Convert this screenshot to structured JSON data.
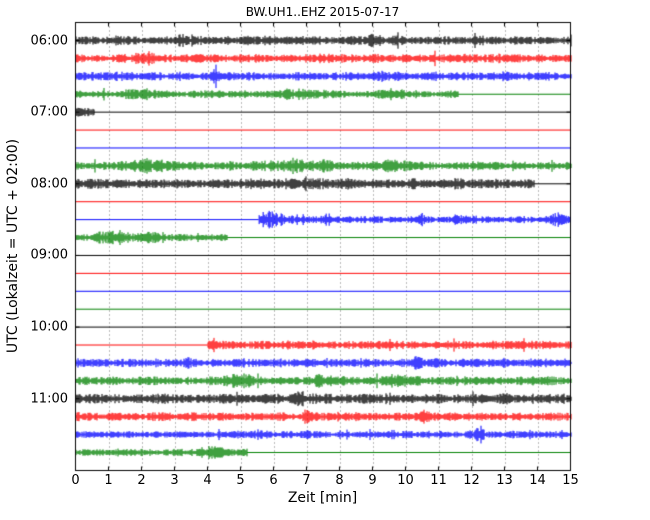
{
  "chart_data": {
    "type": "line",
    "subtype": "helicorder-dayplot",
    "title": "BW.UH1..EHZ 2015-07-17",
    "xlabel": "Zeit  [min]",
    "ylabel": "UTC (Lokalzeit = UTC + 02:00)",
    "xlim": [
      0,
      15
    ],
    "minutes_per_row": 15,
    "num_traces": 24,
    "grid": "dotted vertical line at every minute",
    "legend": "none",
    "xtick_labels": [
      "0",
      "1",
      "2",
      "3",
      "4",
      "5",
      "6",
      "7",
      "8",
      "9",
      "10",
      "11",
      "12",
      "13",
      "14",
      "15"
    ],
    "ytick_labels": [
      "06:00",
      "07:00",
      "08:00",
      "09:00",
      "10:00",
      "11:00"
    ],
    "ytick_rows": [
      0,
      4,
      8,
      12,
      16,
      20
    ],
    "trace_color_cycle": [
      "black",
      "red",
      "blue",
      "green"
    ],
    "colors": {
      "black": "#000000",
      "red": "#ff0000",
      "blue": "#0000ff",
      "green": "#008000"
    },
    "traces": [
      {
        "time": "06:00",
        "color": "black",
        "segments": [
          {
            "s": 0,
            "e": 15,
            "t": "noise",
            "amp": 6
          }
        ],
        "bursts": [
          {
            "at": 3.2,
            "w": 0.15,
            "a": 0.5
          },
          {
            "at": 9.0,
            "w": 0.2,
            "a": 0.4
          }
        ]
      },
      {
        "time": "06:15",
        "color": "red",
        "segments": [
          {
            "s": 0,
            "e": 15,
            "t": "noise",
            "amp": 6
          }
        ],
        "bursts": [
          {
            "at": 2.2,
            "w": 0.12,
            "a": 0.8
          },
          {
            "at": 7.6,
            "w": 0.15,
            "a": 0.5
          }
        ]
      },
      {
        "time": "06:30",
        "color": "blue",
        "segments": [
          {
            "s": 0,
            "e": 15,
            "t": "noise",
            "amp": 6
          }
        ],
        "bursts": [
          {
            "at": 4.3,
            "w": 0.12,
            "a": 0.9
          },
          {
            "at": 10.9,
            "w": 0.1,
            "a": 0.5
          }
        ]
      },
      {
        "time": "06:45",
        "color": "green",
        "segments": [
          {
            "s": 0,
            "e": 11.6,
            "t": "noise",
            "amp": 5
          },
          {
            "s": 11.6,
            "e": 15,
            "t": "flat"
          }
        ],
        "bursts": [
          {
            "at": 2.0,
            "w": 0.35,
            "a": 0.8
          },
          {
            "at": 6.8,
            "w": 0.55,
            "a": 0.7
          },
          {
            "at": 9.6,
            "w": 0.3,
            "a": 0.6
          }
        ]
      },
      {
        "time": "07:00",
        "color": "black",
        "segments": [
          {
            "s": 0,
            "e": 0.55,
            "t": "noise",
            "amp": 7
          },
          {
            "s": 0.55,
            "e": 15,
            "t": "flat"
          }
        ]
      },
      {
        "time": "07:15",
        "color": "red",
        "segments": [
          {
            "s": 0,
            "e": 15,
            "t": "flat"
          }
        ]
      },
      {
        "time": "07:30",
        "color": "blue",
        "segments": [
          {
            "s": 0,
            "e": 15,
            "t": "flat"
          }
        ]
      },
      {
        "time": "07:45",
        "color": "green",
        "segments": [
          {
            "s": 0,
            "e": 15,
            "t": "noise",
            "amp": 6
          }
        ],
        "bursts": [
          {
            "at": 2.1,
            "w": 0.4,
            "a": 0.9
          },
          {
            "at": 6.9,
            "w": 0.6,
            "a": 0.7
          },
          {
            "at": 9.6,
            "w": 0.4,
            "a": 0.5
          }
        ]
      },
      {
        "time": "08:00",
        "color": "black",
        "segments": [
          {
            "s": 0,
            "e": 13.9,
            "t": "noise",
            "amp": 7
          },
          {
            "s": 13.9,
            "e": 15,
            "t": "flat"
          }
        ],
        "bursts": [
          {
            "at": 6.8,
            "w": 0.25,
            "a": 0.4
          }
        ]
      },
      {
        "time": "08:15",
        "color": "red",
        "segments": [
          {
            "s": 0,
            "e": 15,
            "t": "flat"
          }
        ]
      },
      {
        "time": "08:30",
        "color": "blue",
        "segments": [
          {
            "s": 0,
            "e": 5.55,
            "t": "flat"
          },
          {
            "s": 5.55,
            "e": 15,
            "t": "noise",
            "amp": 5
          }
        ],
        "bursts": [
          {
            "at": 5.9,
            "w": 0.3,
            "a": 1.6
          },
          {
            "at": 7.6,
            "w": 0.1,
            "a": 1.0
          },
          {
            "at": 10.4,
            "w": 0.12,
            "a": 1.2
          },
          {
            "at": 11.6,
            "w": 0.1,
            "a": 0.8
          },
          {
            "at": 14.6,
            "w": 0.12,
            "a": 1.0
          }
        ]
      },
      {
        "time": "08:45",
        "color": "green",
        "segments": [
          {
            "s": 0,
            "e": 4.6,
            "t": "noise",
            "amp": 5
          },
          {
            "s": 4.6,
            "e": 15,
            "t": "flat"
          }
        ],
        "bursts": [
          {
            "at": 1.1,
            "w": 0.35,
            "a": 1.2
          },
          {
            "at": 2.3,
            "w": 0.2,
            "a": 0.6
          }
        ]
      },
      {
        "time": "09:00",
        "color": "black",
        "segments": [
          {
            "s": 0,
            "e": 15,
            "t": "flat"
          }
        ]
      },
      {
        "time": "09:15",
        "color": "red",
        "segments": [
          {
            "s": 0,
            "e": 15,
            "t": "flat"
          }
        ]
      },
      {
        "time": "09:30",
        "color": "blue",
        "segments": [
          {
            "s": 0,
            "e": 15,
            "t": "flat"
          }
        ]
      },
      {
        "time": "09:45",
        "color": "green",
        "segments": [
          {
            "s": 0,
            "e": 15,
            "t": "flat"
          }
        ]
      },
      {
        "time": "10:00",
        "color": "black",
        "segments": [
          {
            "s": 0,
            "e": 15,
            "t": "flat"
          }
        ]
      },
      {
        "time": "10:15",
        "color": "red",
        "segments": [
          {
            "s": 0,
            "e": 4.0,
            "t": "flat"
          },
          {
            "s": 4.0,
            "e": 15,
            "t": "noise",
            "amp": 6
          }
        ],
        "bursts": [
          {
            "at": 4.2,
            "w": 0.12,
            "a": 0.6
          }
        ]
      },
      {
        "time": "10:30",
        "color": "blue",
        "segments": [
          {
            "s": 0,
            "e": 15,
            "t": "noise",
            "amp": 6
          }
        ],
        "bursts": [
          {
            "at": 3.4,
            "w": 0.1,
            "a": 0.4
          },
          {
            "at": 10.3,
            "w": 0.1,
            "a": 0.7
          }
        ]
      },
      {
        "time": "10:45",
        "color": "green",
        "segments": [
          {
            "s": 0,
            "e": 15,
            "t": "noise",
            "amp": 6
          }
        ],
        "bursts": [
          {
            "at": 5.0,
            "w": 0.3,
            "a": 0.8
          },
          {
            "at": 7.6,
            "w": 0.4,
            "a": 0.6
          },
          {
            "at": 9.7,
            "w": 0.3,
            "a": 0.5
          }
        ]
      },
      {
        "time": "11:00",
        "color": "black",
        "segments": [
          {
            "s": 0,
            "e": 15,
            "t": "noise",
            "amp": 7
          }
        ],
        "bursts": [
          {
            "at": 6.9,
            "w": 0.15,
            "a": 0.5
          }
        ]
      },
      {
        "time": "11:15",
        "color": "red",
        "segments": [
          {
            "s": 0,
            "e": 15,
            "t": "noise",
            "amp": 6
          }
        ],
        "bursts": [
          {
            "at": 7.0,
            "w": 0.1,
            "a": 0.8
          },
          {
            "at": 10.6,
            "w": 0.1,
            "a": 0.6
          }
        ]
      },
      {
        "time": "11:30",
        "color": "blue",
        "segments": [
          {
            "s": 0,
            "e": 15,
            "t": "noise",
            "amp": 5
          }
        ],
        "bursts": [
          {
            "at": 5.6,
            "w": 0.1,
            "a": 0.9
          },
          {
            "at": 9.6,
            "w": 0.1,
            "a": 0.7
          },
          {
            "at": 12.25,
            "w": 0.08,
            "a": 2.2
          }
        ]
      },
      {
        "time": "11:45",
        "color": "green",
        "segments": [
          {
            "s": 0,
            "e": 5.2,
            "t": "noise",
            "amp": 5
          },
          {
            "s": 5.2,
            "e": 15,
            "t": "flat"
          }
        ],
        "bursts": [
          {
            "at": 4.1,
            "w": 0.25,
            "a": 1.0
          }
        ]
      }
    ]
  }
}
